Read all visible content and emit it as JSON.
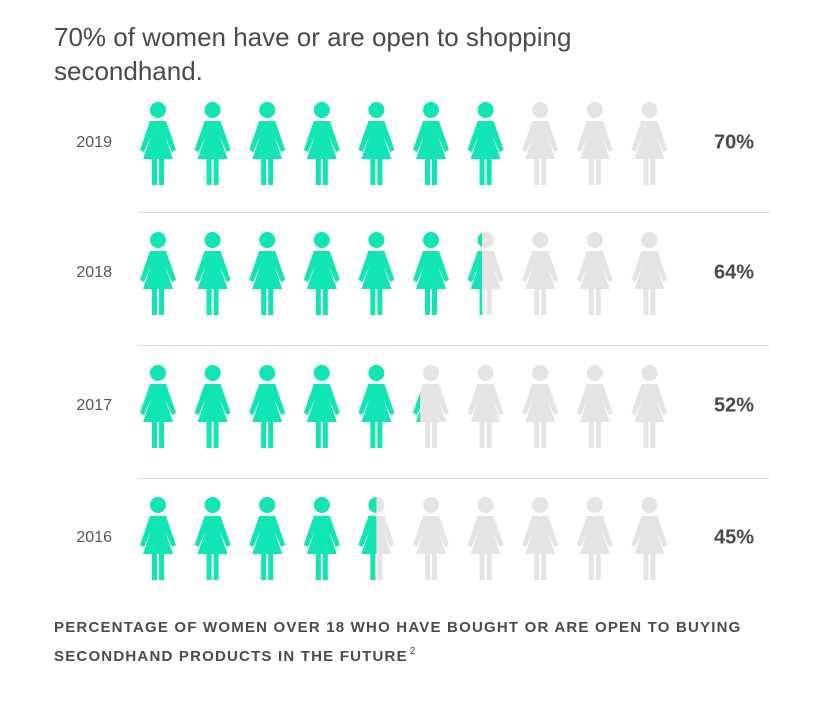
{
  "title": "70% of women have or are open to shopping secondhand.",
  "footnote": {
    "text": "PERCENTAGE OF WOMEN OVER 18 WHO HAVE BOUGHT OR ARE OPEN TO BUYING SECONDHAND PRODUCTS IN THE FUTURE",
    "superscript": "2"
  },
  "colors": {
    "filled": "#12e5b4",
    "empty": "#e4e4e4",
    "text": "#4a4a4a"
  },
  "icon_name": "woman-icon",
  "chart_data": {
    "type": "pictograph",
    "title": "70% of women have or are open to shopping secondhand.",
    "icons_per_row": 10,
    "categories": [
      "2019",
      "2018",
      "2017",
      "2016"
    ],
    "values": [
      70,
      64,
      52,
      45
    ],
    "value_labels": [
      "70%",
      "64%",
      "52%",
      "45%"
    ],
    "unit": "%",
    "grid": false,
    "legend": "none"
  }
}
